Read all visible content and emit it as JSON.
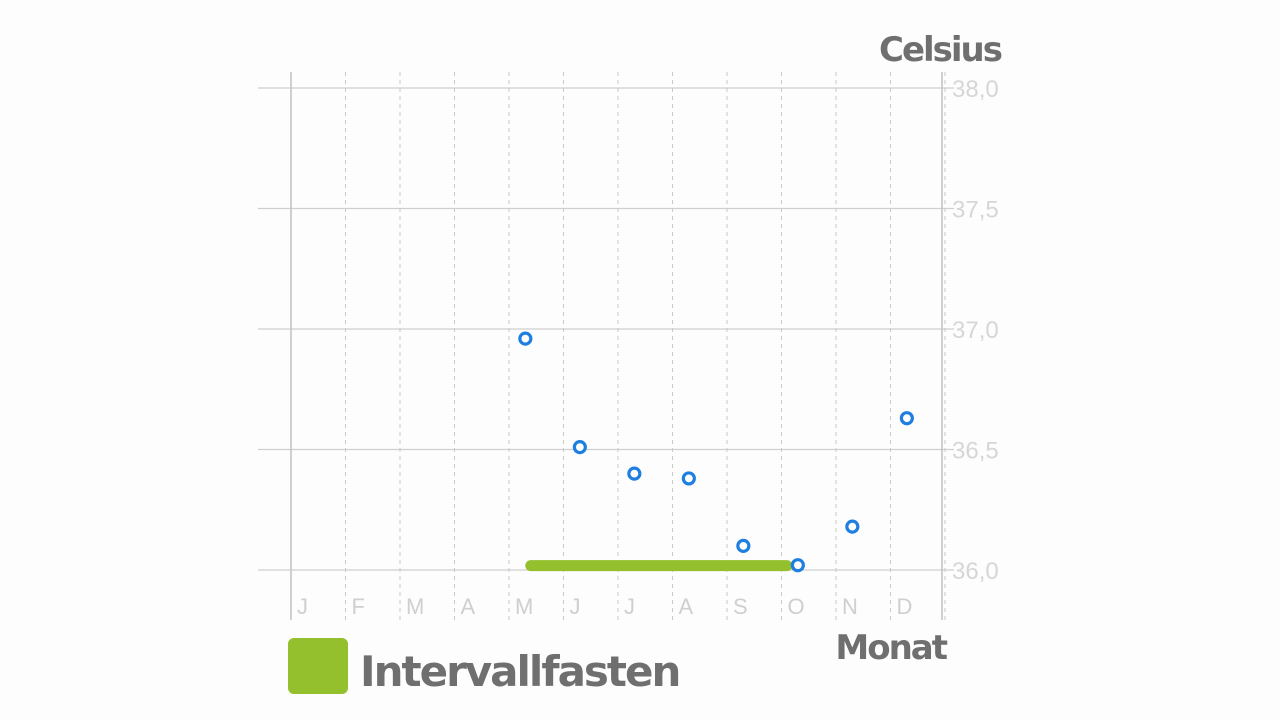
{
  "chart_data": {
    "type": "scatter",
    "ylabel": "Celsius",
    "xlabel": "Monat",
    "categories": [
      "J",
      "F",
      "M",
      "A",
      "M",
      "J",
      "J",
      "A",
      "S",
      "O",
      "N",
      "D"
    ],
    "y_ticks": [
      "36,0",
      "36,5",
      "37,0",
      "37,5",
      "38,0"
    ],
    "ylim": [
      36.0,
      38.0
    ],
    "grid": true,
    "series": [
      {
        "color": "#1f7fe0",
        "points": [
          {
            "month_index": 4.3,
            "y": 36.96
          },
          {
            "month_index": 5.3,
            "y": 36.51
          },
          {
            "month_index": 6.3,
            "y": 36.4
          },
          {
            "month_index": 7.3,
            "y": 36.38
          },
          {
            "month_index": 8.3,
            "y": 36.1
          },
          {
            "month_index": 9.3,
            "y": 36.02
          },
          {
            "month_index": 10.3,
            "y": 36.18
          },
          {
            "month_index": 11.3,
            "y": 36.63
          }
        ]
      }
    ],
    "highlight": {
      "label": "Intervallfasten",
      "color": "#93c02c",
      "x_start": 4.4,
      "x_end": 9.1,
      "y": 36.01
    },
    "legend": {
      "position": "bottom-left",
      "entries": [
        "Intervallfasten"
      ]
    }
  }
}
